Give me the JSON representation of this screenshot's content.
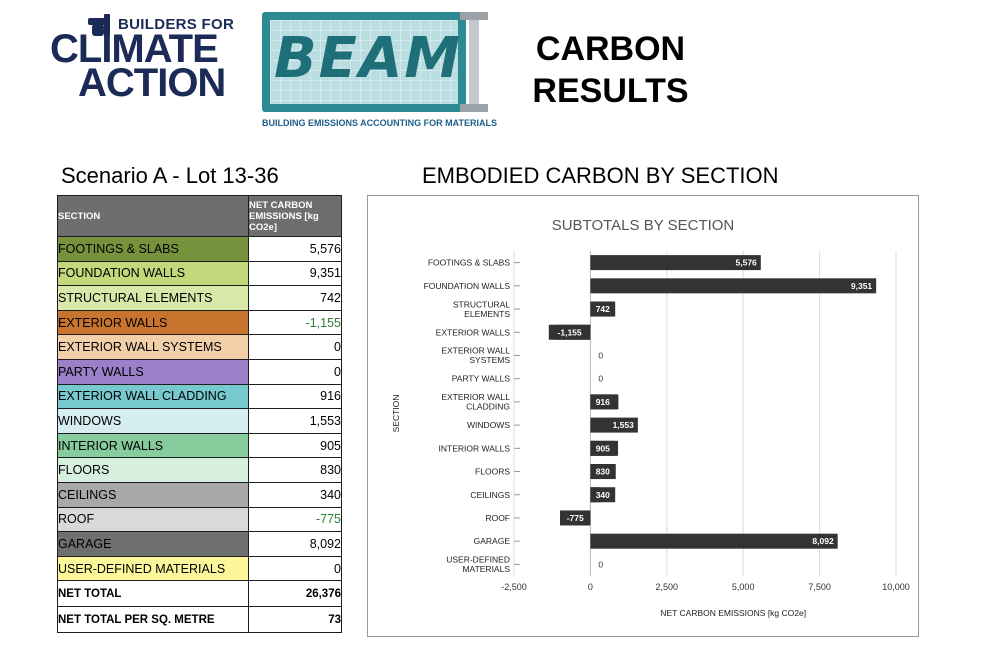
{
  "header": {
    "bfca_line1": "BUILDERS FOR",
    "bfca_line2": "CLIMATE",
    "bfca_line3": "ACTION",
    "beam_word": "BEAM",
    "beam_subtitle": "BUILDING EMISSIONS ACCOUNTING FOR MATERIALS",
    "title_line1": "CARBON",
    "title_line2": "RESULTS"
  },
  "table": {
    "scenario_title": "Scenario A - Lot 13-36",
    "col_section": "SECTION",
    "col_value": "NET CARBON EMISSIONS [kg CO2e]",
    "rows": [
      {
        "section": "FOOTINGS & SLABS",
        "value": "5,576",
        "color": "#76923c",
        "negative": false
      },
      {
        "section": "FOUNDATION WALLS",
        "value": "9,351",
        "color": "#c2d87a",
        "negative": false
      },
      {
        "section": "STRUCTURAL ELEMENTS",
        "value": "742",
        "color": "#d7e8a9",
        "negative": false
      },
      {
        "section": "EXTERIOR WALLS",
        "value": "-1,155",
        "color": "#c9742e",
        "negative": true
      },
      {
        "section": "EXTERIOR WALL SYSTEMS",
        "value": "0",
        "color": "#f3cfa9",
        "negative": false
      },
      {
        "section": "PARTY WALLS",
        "value": "0",
        "color": "#9b7fc8",
        "negative": false
      },
      {
        "section": "EXTERIOR WALL CLADDING",
        "value": "916",
        "color": "#77c8cf",
        "negative": false
      },
      {
        "section": "WINDOWS",
        "value": "1,553",
        "color": "#d6edf1",
        "negative": false
      },
      {
        "section": "INTERIOR WALLS",
        "value": "905",
        "color": "#87cc9c",
        "negative": false
      },
      {
        "section": "FLOORS",
        "value": "830",
        "color": "#d6efde",
        "negative": false
      },
      {
        "section": "CEILINGS",
        "value": "340",
        "color": "#a8a8a8",
        "negative": false
      },
      {
        "section": "ROOF",
        "value": "-775",
        "color": "#d9d9d9",
        "negative": true
      },
      {
        "section": "GARAGE",
        "value": "8,092",
        "color": "#6f6f6f",
        "negative": false
      },
      {
        "section": "USER-DEFINED MATERIALS",
        "value": "0",
        "color": "#fbf79a",
        "negative": false
      }
    ],
    "total_label": "NET TOTAL",
    "total_value": "26,376",
    "per_m2_label": "NET TOTAL PER SQ. METRE",
    "per_m2_value": "73"
  },
  "chart_heading": "EMBODIED CARBON BY SECTION",
  "chart_data": {
    "type": "bar",
    "orientation": "horizontal",
    "title": "SUBTOTALS BY SECTION",
    "xlabel": "NET CARBON EMISSIONS [kg CO2e]",
    "ylabel": "SECTION",
    "xlim": [
      -2500,
      10000
    ],
    "xticks": [
      -2500,
      0,
      2500,
      5000,
      7500,
      10000
    ],
    "xtick_labels": [
      "-2,500",
      "0",
      "2,500",
      "5,000",
      "7,500",
      "10,000"
    ],
    "grid": true,
    "bar_color": "#333333",
    "categories": [
      [
        "FOOTINGS & SLABS"
      ],
      [
        "FOUNDATION WALLS"
      ],
      [
        "STRUCTURAL",
        "ELEMENTS"
      ],
      [
        "EXTERIOR WALLS"
      ],
      [
        "EXTERIOR WALL",
        "SYSTEMS"
      ],
      [
        "PARTY WALLS"
      ],
      [
        "EXTERIOR WALL",
        "CLADDING"
      ],
      [
        "WINDOWS"
      ],
      [
        "INTERIOR WALLS"
      ],
      [
        "FLOORS"
      ],
      [
        "CEILINGS"
      ],
      [
        "ROOF"
      ],
      [
        "GARAGE"
      ],
      [
        "USER-DEFINED",
        "MATERIALS"
      ]
    ],
    "values": [
      5576,
      9351,
      742,
      -1155,
      0,
      0,
      916,
      1553,
      905,
      830,
      340,
      -775,
      8092,
      0
    ],
    "value_labels": [
      "5,576",
      "9,351",
      "742",
      "-1,155",
      "0",
      "0",
      "916",
      "1,553",
      "905",
      "830",
      "340",
      "-775",
      "8,092",
      "0"
    ]
  }
}
